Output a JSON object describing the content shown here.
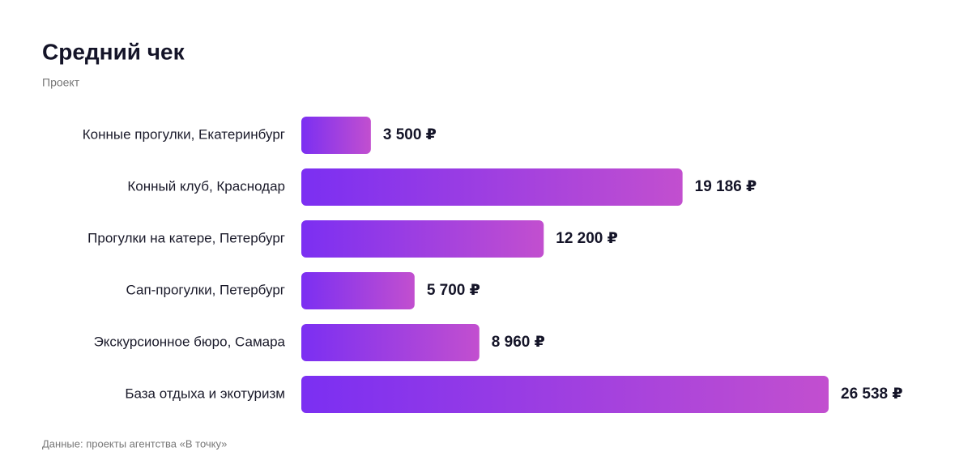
{
  "chart_data": {
    "type": "barh",
    "title": "Средний чек",
    "subtitle": "Проект",
    "categories": [
      "Конные прогулки, Екатеринбург",
      "Конный клуб, Краснодар",
      "Прогулки на катере, Петербург",
      "Сап-прогулки, Петербург",
      "Экскурсионное бюро, Самара",
      "База отдыха и экотуризм"
    ],
    "values": [
      3500,
      19186,
      12200,
      5700,
      8960,
      26538
    ],
    "value_labels": [
      "3 500 ₽",
      "19 186 ₽",
      "12 200 ₽",
      "5 700 ₽",
      "8 960 ₽",
      "26 538 ₽"
    ],
    "colors": [
      "#7b2ff2",
      "#c24fcf"
    ],
    "note": "Данные: проекты агентства «В точку»"
  }
}
